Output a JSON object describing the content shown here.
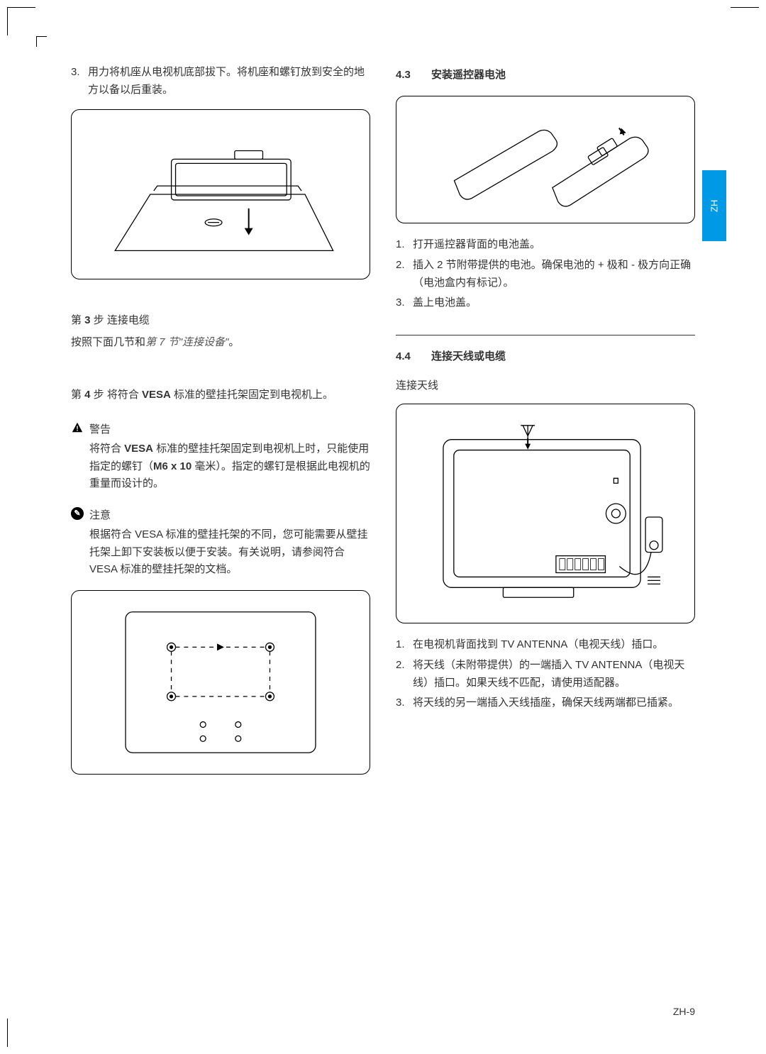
{
  "side_tab": "ZH",
  "left": {
    "item3_num": "3.",
    "item3_text": "用力将机座从电视机底部拔下。将机座和螺钉放到安全的地方以备以后重装。",
    "step3_label_pre": "第 ",
    "step3_bold": "3",
    "step3_label_post": " 步 连接电缆",
    "step3_body_1": "按照下面几节和",
    "step3_body_2": "第 7 节\"连接设备\"",
    "step3_body_3": "。",
    "step4_pre": "第 ",
    "step4_bold1": "4",
    "step4_mid": " 步 将符合 ",
    "step4_bold2": "VESA",
    "step4_post": " 标准的壁挂托架固定到电视机上。",
    "warn_title": "警告",
    "warn_body_1": "将符合 ",
    "warn_body_bold1": "VESA",
    "warn_body_2": " 标准的壁挂托架固定到电视机上时，只能使用指定的螺钉（",
    "warn_body_bold2": "M6 x 10",
    "warn_body_3": " 毫米）。指定的螺钉是根据此电视机的重量而设计的。",
    "note_title": "注意",
    "note_body": "根据符合 VESA 标准的壁挂托架的不同，您可能需要从壁挂托架上卸下安装板以便于安装。有关说明，请参阅符合 VESA 标准的壁挂托架的文档。"
  },
  "right": {
    "sec43_num": "4.3",
    "sec43_title": "安装遥控器电池",
    "r_items": [
      {
        "num": "1.",
        "text": "打开遥控器背面的电池盖。"
      },
      {
        "num": "2.",
        "text": "插入 2 节附带提供的电池。确保电池的 + 极和 - 极方向正确（电池盒内有标记）。"
      },
      {
        "num": "3.",
        "text": "盖上电池盖。"
      }
    ],
    "sec44_num": "4.4",
    "sec44_title": "连接天线或电缆",
    "sub44": "连接天线",
    "a_items": [
      {
        "num": "1.",
        "text": "在电视机背面找到 TV ANTENNA（电视天线）插口。"
      },
      {
        "num": "2.",
        "text": "将天线（未附带提供）的一端插入 TV ANTENNA（电视天线）插口。如果天线不匹配，请使用适配器。"
      },
      {
        "num": "3.",
        "text": "将天线的另一端插入天线插座，确保天线两端都已插紧。"
      }
    ]
  },
  "page_number": "ZH-9"
}
